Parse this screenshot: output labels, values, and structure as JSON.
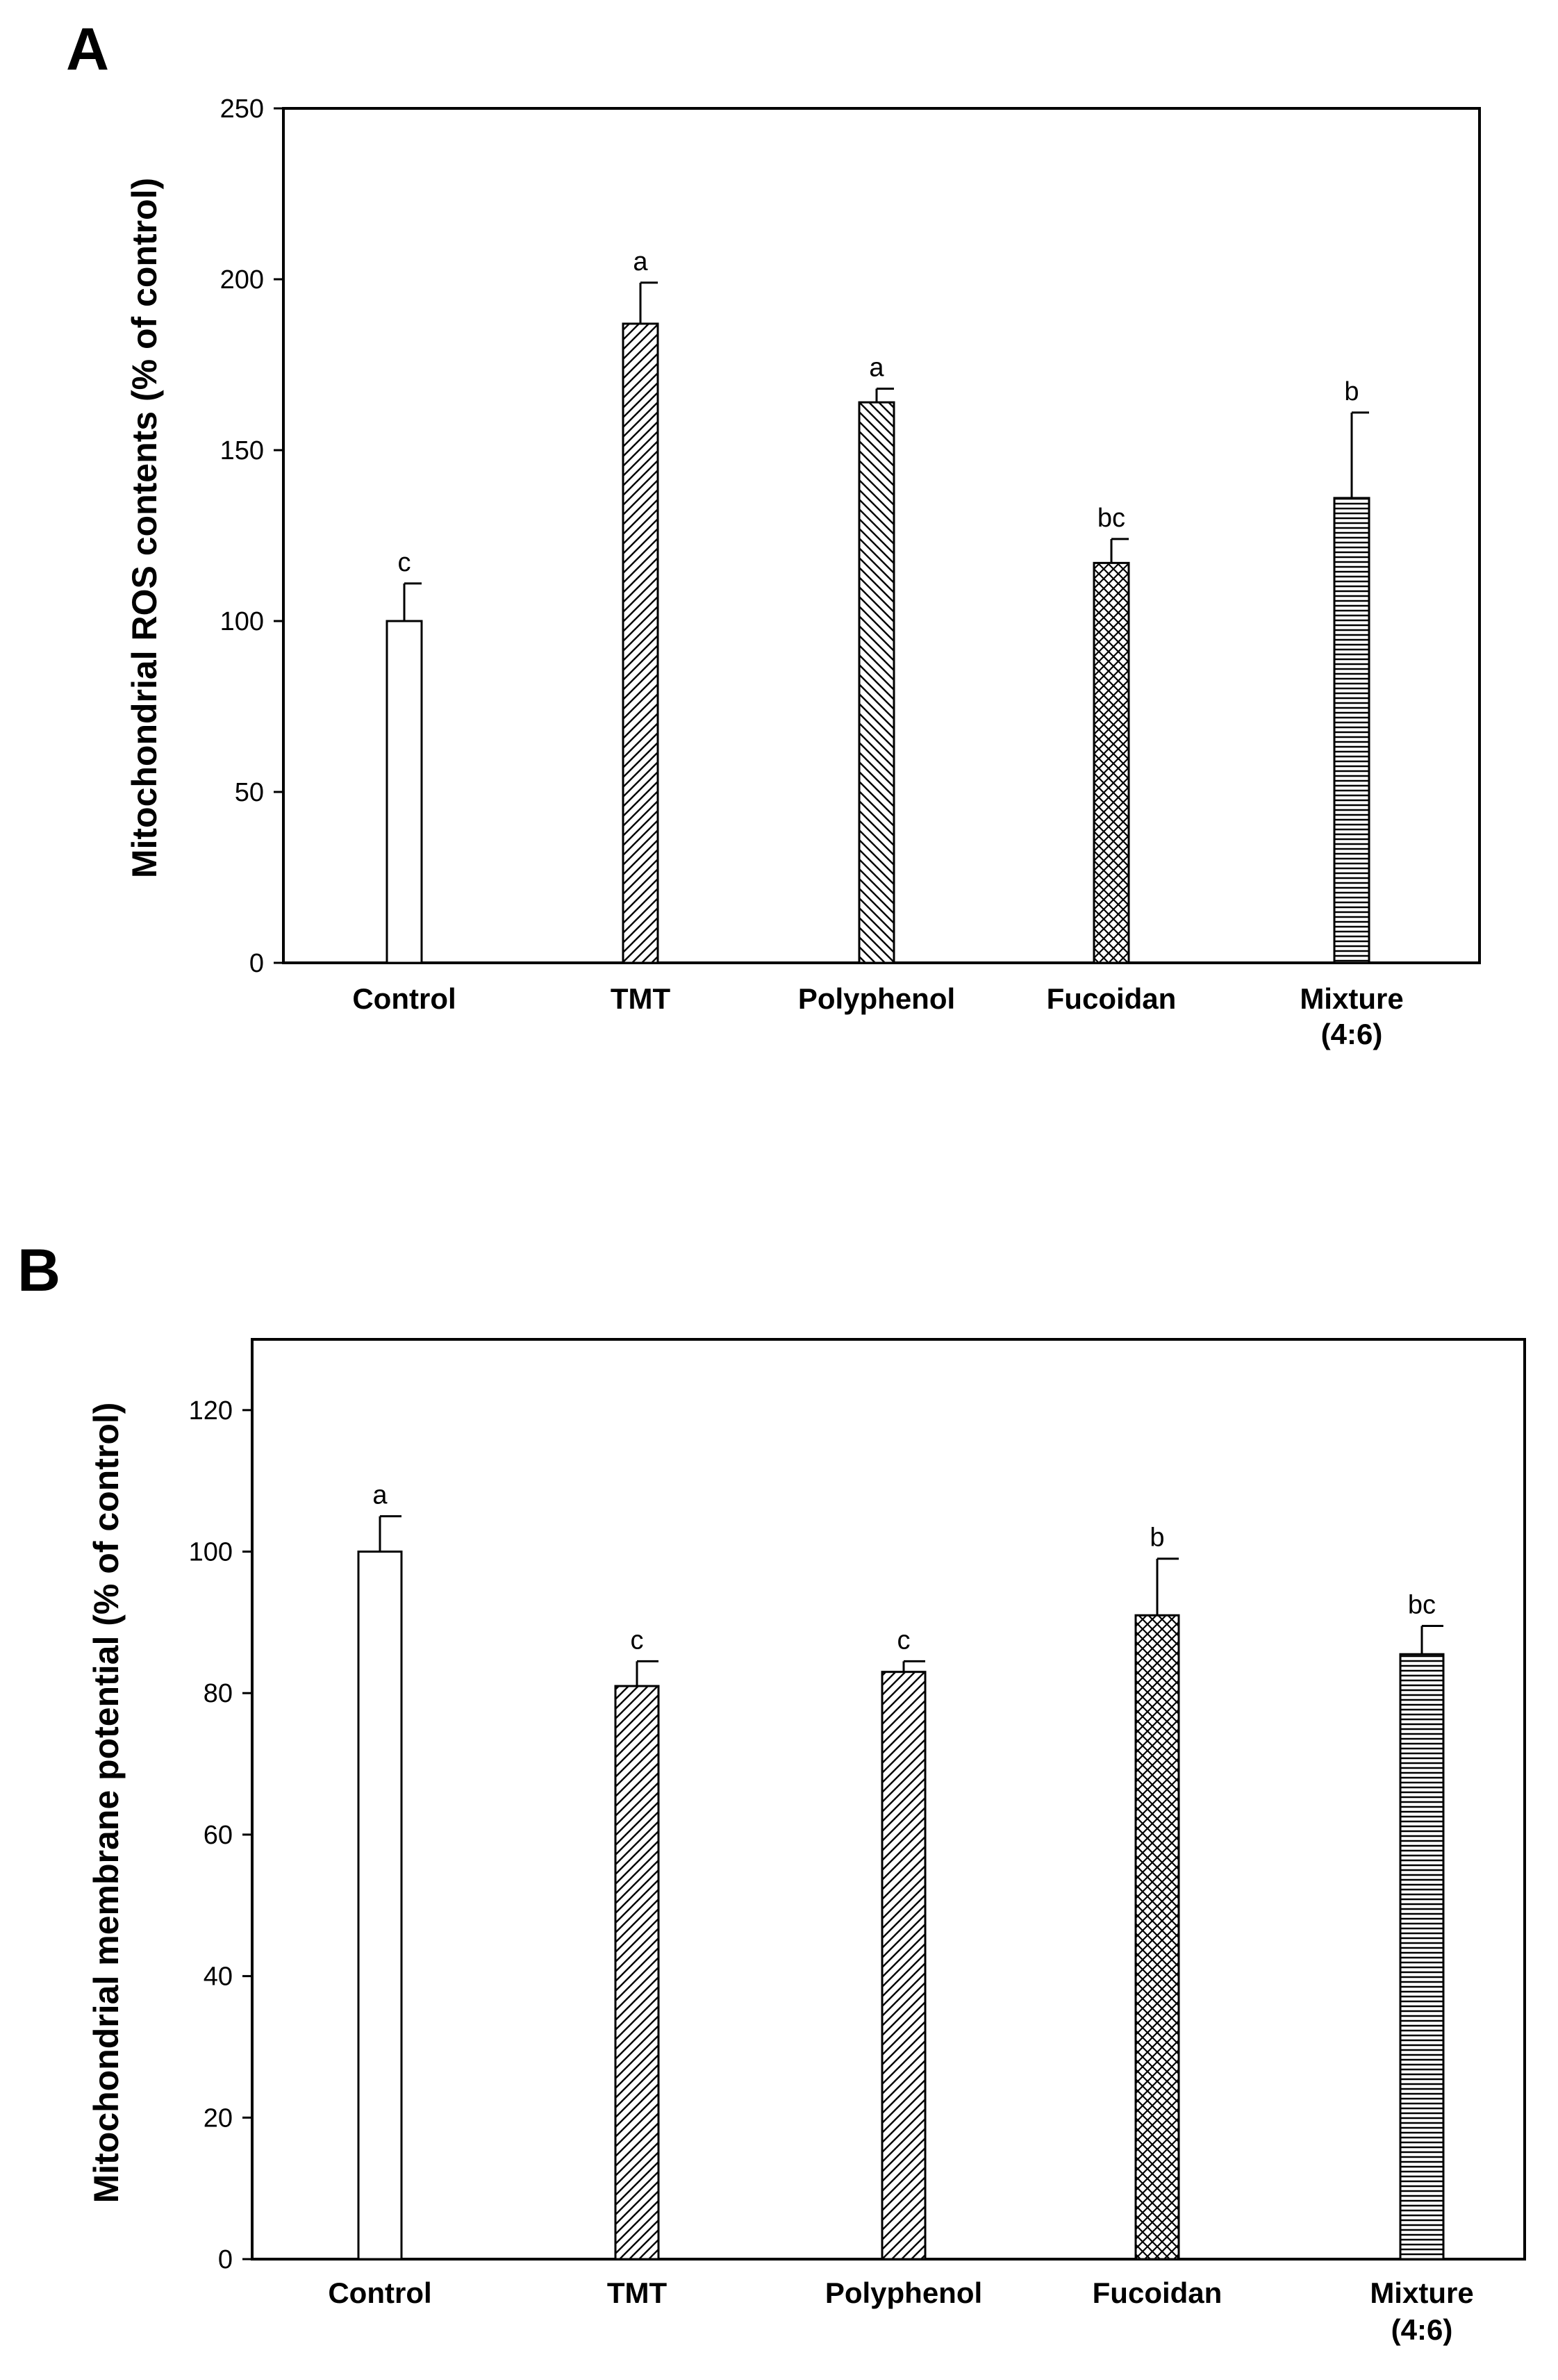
{
  "chart_data": [
    {
      "panel": "A",
      "type": "bar",
      "categories": [
        {
          "line1": "Control",
          "line2": ""
        },
        {
          "line1": "TMT",
          "line2": ""
        },
        {
          "line1": "Polyphenol",
          "line2": ""
        },
        {
          "line1": "Fucoidan",
          "line2": ""
        },
        {
          "line1": "Mixture",
          "line2": "(4:6)"
        }
      ],
      "values": [
        100,
        187,
        164,
        117,
        136
      ],
      "errors": [
        11,
        12,
        4,
        7,
        25
      ],
      "significance": [
        "c",
        "a",
        "a",
        "bc",
        "b"
      ],
      "patterns": [
        "none",
        "diag-right",
        "diag-left",
        "crosshatch",
        "horizontal"
      ],
      "ylabel": "Mitochondrial ROS contents (% of control)",
      "xlabel": "",
      "ylim": [
        0,
        250
      ],
      "yticks": [
        0,
        50,
        100,
        150,
        200,
        250
      ],
      "grid": false
    },
    {
      "panel": "B",
      "type": "bar",
      "categories": [
        {
          "line1": "Control",
          "line2": ""
        },
        {
          "line1": "TMT",
          "line2": ""
        },
        {
          "line1": "Polyphenol",
          "line2": ""
        },
        {
          "line1": "Fucoidan",
          "line2": ""
        },
        {
          "line1": "Mixture",
          "line2": "(4:6)"
        }
      ],
      "values": [
        100,
        81,
        83,
        91,
        85.5
      ],
      "errors": [
        5,
        3.5,
        1.5,
        8,
        4
      ],
      "significance": [
        "a",
        "c",
        "c",
        "b",
        "bc"
      ],
      "patterns": [
        "none",
        "diag-right",
        "diag-right",
        "crosshatch",
        "horizontal"
      ],
      "ylabel": "Mitochondrial membrane potential (% of control)",
      "xlabel": "",
      "ylim": [
        0,
        130
      ],
      "yticks": [
        0,
        20,
        40,
        60,
        80,
        100,
        120
      ],
      "grid": false
    }
  ]
}
